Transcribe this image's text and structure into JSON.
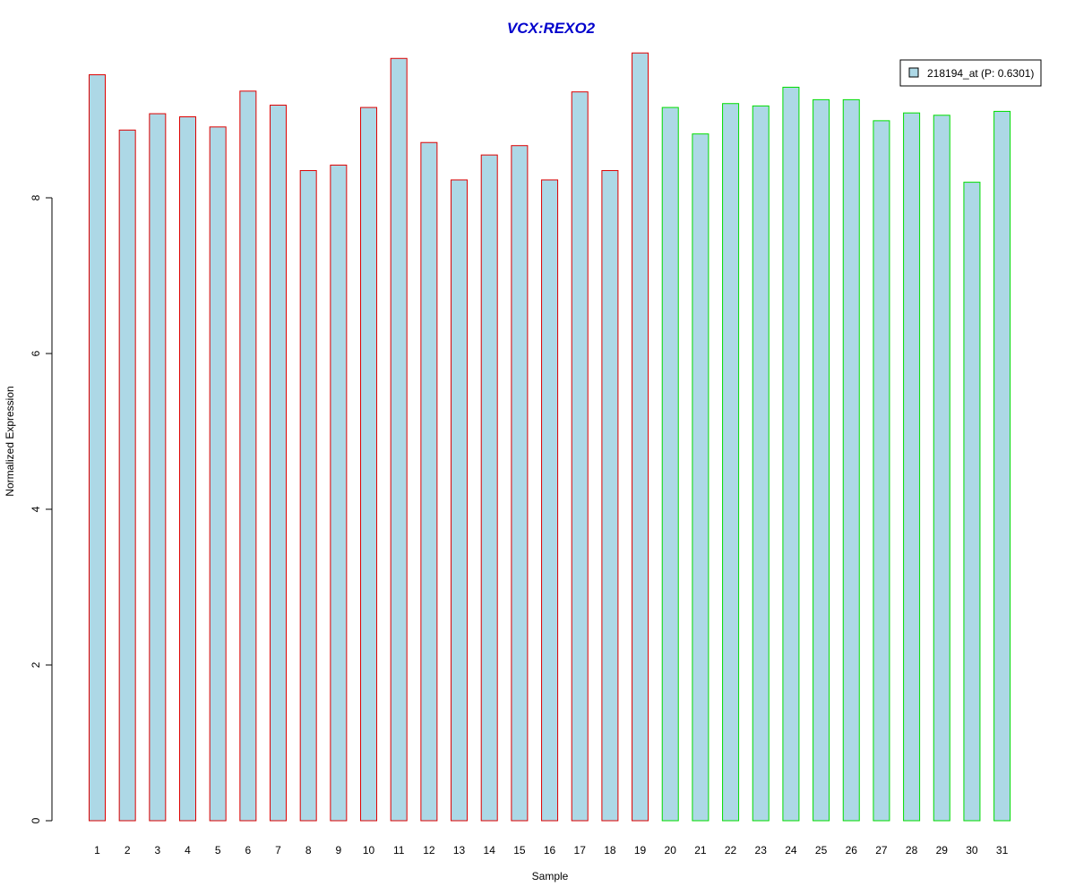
{
  "chart_data": {
    "type": "bar",
    "title": "VCX:REXO2",
    "xlabel": "Sample",
    "ylabel": "Normalized Expression",
    "categories": [
      "1",
      "2",
      "3",
      "4",
      "5",
      "6",
      "7",
      "8",
      "9",
      "10",
      "11",
      "12",
      "13",
      "14",
      "15",
      "16",
      "17",
      "18",
      "19",
      "20",
      "21",
      "22",
      "23",
      "24",
      "25",
      "26",
      "27",
      "28",
      "29",
      "30",
      "31"
    ],
    "series": [
      {
        "name": "218194_at (P: 0.6301)",
        "values": [
          9.58,
          8.87,
          9.08,
          9.04,
          8.91,
          9.37,
          9.19,
          8.35,
          8.42,
          9.16,
          9.79,
          8.71,
          8.23,
          8.55,
          8.67,
          8.23,
          9.36,
          8.35,
          9.86,
          9.16,
          8.82,
          9.21,
          9.18,
          9.42,
          9.26,
          9.26,
          8.99,
          9.09,
          9.06,
          8.2,
          9.11
        ]
      }
    ],
    "groups": [
      {
        "from": 1,
        "to": 19,
        "border_color": "#dd0000"
      },
      {
        "from": 20,
        "to": 31,
        "border_color": "#00dd00"
      }
    ],
    "yticks": [
      "0",
      "2",
      "4",
      "6",
      "8"
    ],
    "ylim": [
      0,
      9.86
    ],
    "grid": false,
    "legend_position": "top-right",
    "colors": {
      "bar_fill": "#add8e6",
      "title": "#0000cc",
      "axis": "#000000"
    }
  }
}
